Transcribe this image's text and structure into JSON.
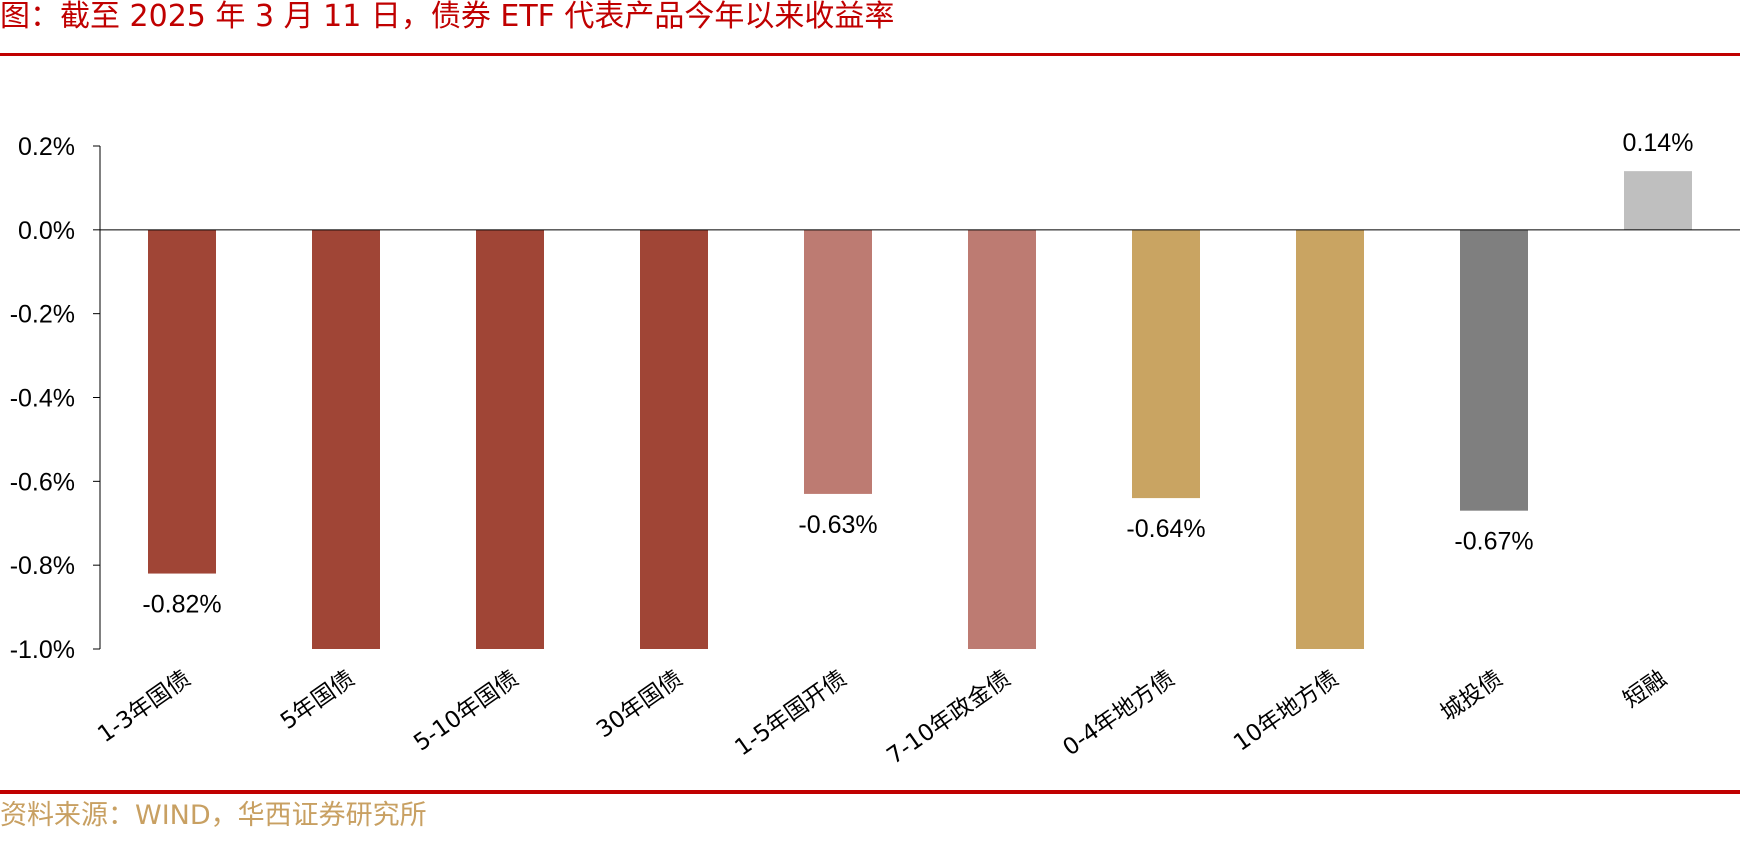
{
  "title": "图：截至 2025 年 3 月 11 日，债券 ETF 代表产品今年以来收益率",
  "source": "资料来源：WIND，华西证券研究所",
  "colors": {
    "title": "#c00000",
    "rule": "#c00000",
    "source": "#c8a062"
  },
  "chart_data": {
    "type": "bar",
    "categories": [
      "1-3年国债",
      "5年国债",
      "5-10年国债",
      "30年国债",
      "1-5年国开债",
      "7-10年政金债",
      "0-4年地方债",
      "10年地方债",
      "城投债",
      "短融"
    ],
    "values": [
      -0.82,
      -1.0,
      -1.0,
      -1.0,
      -0.63,
      -1.0,
      -0.64,
      -1.0,
      -0.67,
      0.14
    ],
    "value_labels": [
      "-0.82%",
      "",
      "",
      "",
      "-0.63%",
      "",
      "-0.64%",
      "",
      "-0.67%",
      "0.14%"
    ],
    "bar_colors": [
      "#a04536",
      "#a04536",
      "#a04536",
      "#a04536",
      "#bd7b72",
      "#bd7b72",
      "#c9a462",
      "#c9a462",
      "#7f7f7f",
      "#bfbfbf"
    ],
    "y_ticks": [
      "0.2%",
      "0.0%",
      "-0.2%",
      "-0.4%",
      "-0.6%",
      "-0.8%",
      "-1.0%"
    ],
    "y_tick_values": [
      0.2,
      0.0,
      -0.2,
      -0.4,
      -0.6,
      -0.8,
      -1.0
    ],
    "ylim": [
      -1.0,
      0.2
    ],
    "xlabel": "",
    "ylabel": "",
    "grid": false,
    "legend": "none"
  }
}
